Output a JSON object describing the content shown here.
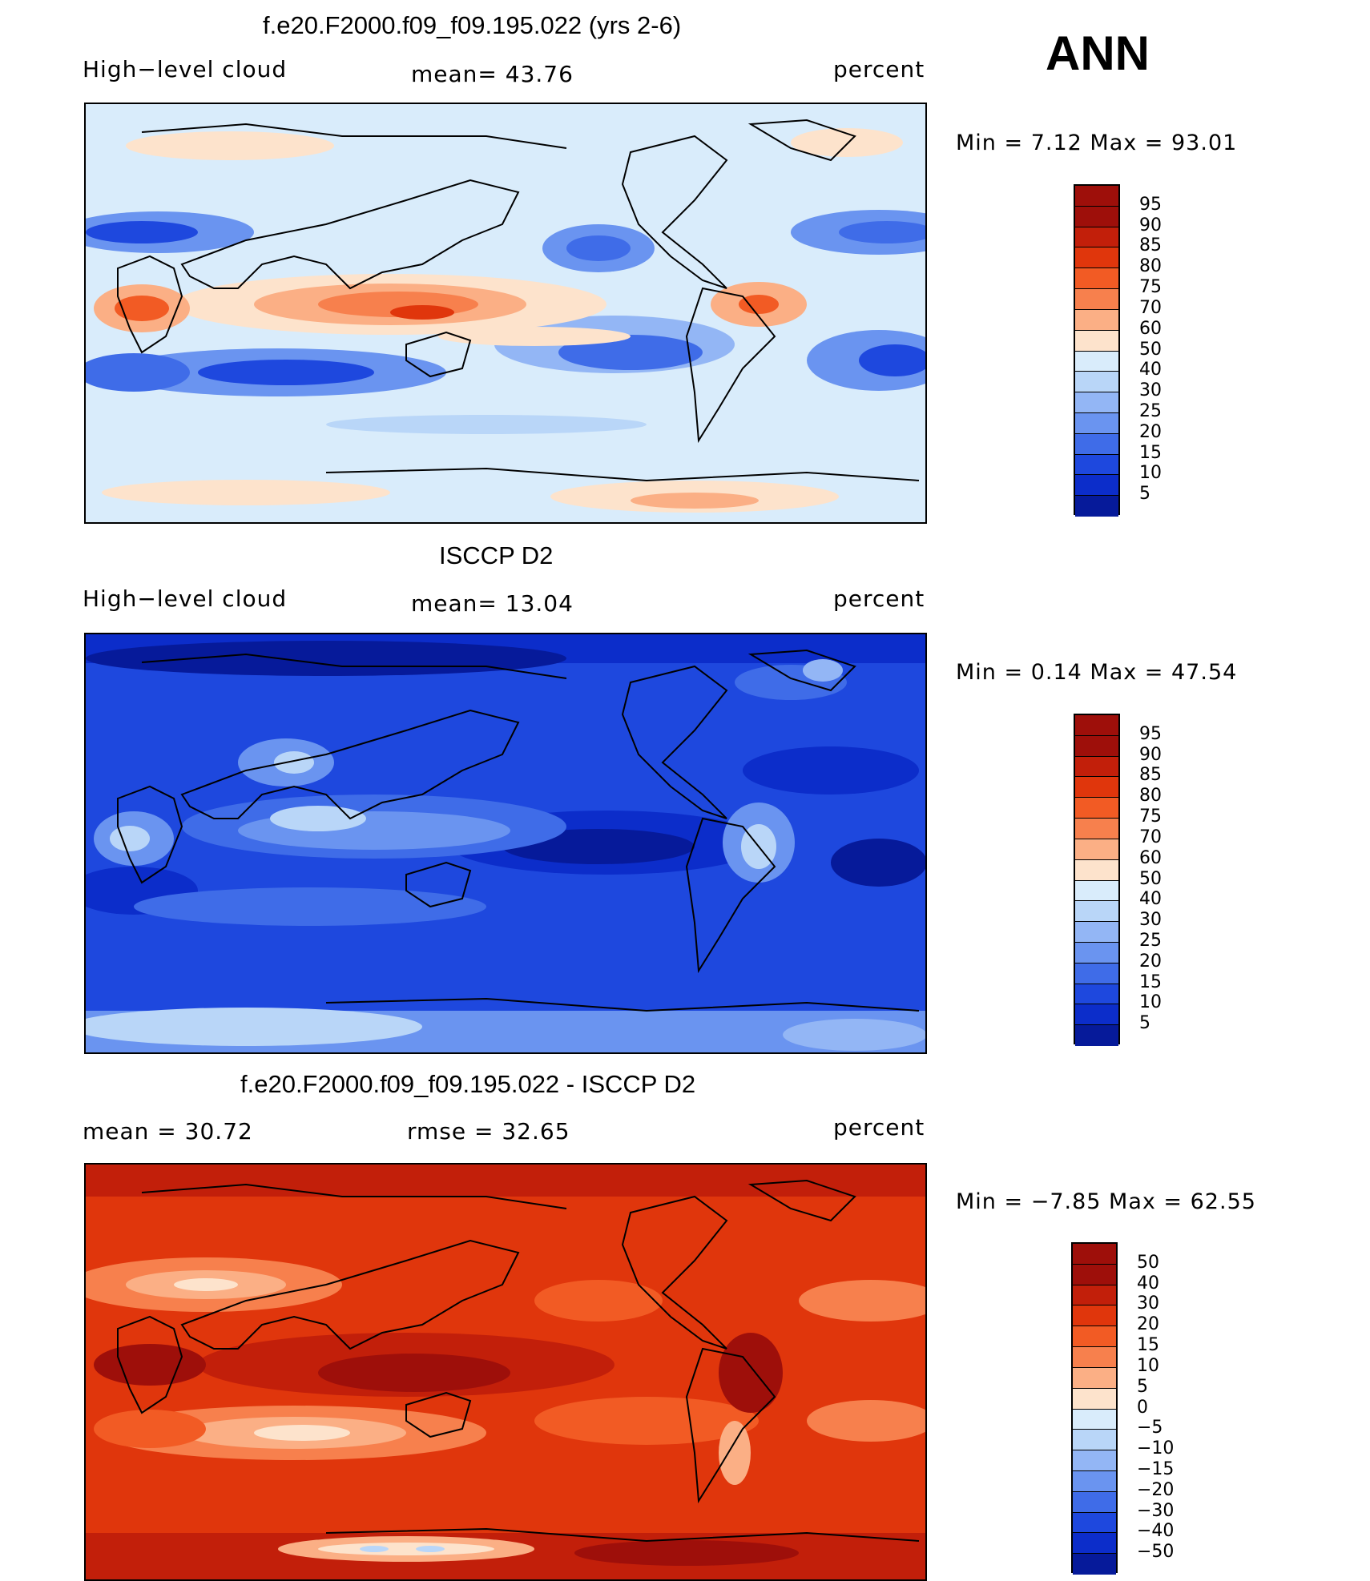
{
  "header": {
    "season": "ANN"
  },
  "panels": [
    {
      "title": "f.e20.F2000.f09_f09.195.022 (yrs 2-6)",
      "left_label": "High−level cloud",
      "center_label": "mean=   43.76",
      "right_label": "percent",
      "minmax": "Min  =     7.12  Max  =    93.01",
      "palette": [
        "#9e0f0a",
        "#c21f0a",
        "#e0360c",
        "#f25b24",
        "#f7804d",
        "#fbaf85",
        "#fde3cc",
        "#d9ecfb",
        "#b9d6f8",
        "#93b6f5",
        "#6a94f0",
        "#3f6ce8",
        "#1e48de",
        "#0c2dca",
        "#061a9a"
      ],
      "labels": [
        "95",
        "90",
        "85",
        "80",
        "75",
        "70",
        "60",
        "50",
        "40",
        "30",
        "25",
        "20",
        "15",
        "10",
        "5"
      ],
      "bg": "#d9ecfb"
    },
    {
      "title": "ISCCP D2",
      "left_label": "High−level cloud",
      "center_label": "mean=   13.04",
      "right_label": "percent",
      "minmax": "Min  =     0.14  Max  =    47.54",
      "palette": [
        "#9e0f0a",
        "#c21f0a",
        "#e0360c",
        "#f25b24",
        "#f7804d",
        "#fbaf85",
        "#fde3cc",
        "#d9ecfb",
        "#b9d6f8",
        "#93b6f5",
        "#6a94f0",
        "#3f6ce8",
        "#1e48de",
        "#0c2dca",
        "#061a9a"
      ],
      "labels": [
        "95",
        "90",
        "85",
        "80",
        "75",
        "70",
        "60",
        "50",
        "40",
        "30",
        "25",
        "20",
        "15",
        "10",
        "5"
      ],
      "bg": "#1e48de"
    },
    {
      "title": "f.e20.F2000.f09_f09.195.022 - ISCCP D2",
      "left_label": "mean  =    30.72",
      "center_label": "rmse  =    32.65",
      "right_label": "percent",
      "minmax": "Min  =   −7.85  Max  =    62.55",
      "palette": [
        "#9e0f0a",
        "#c21f0a",
        "#e0360c",
        "#f25b24",
        "#f7804d",
        "#fbaf85",
        "#fde3cc",
        "#d9ecfb",
        "#b9d6f8",
        "#93b6f5",
        "#6a94f0",
        "#3f6ce8",
        "#1e48de",
        "#0c2dca",
        "#061a9a"
      ],
      "labels": [
        "50",
        "40",
        "30",
        "20",
        "15",
        "10",
        "5",
        "0",
        "−5",
        "−10",
        "−15",
        "−20",
        "−30",
        "−40",
        "−50"
      ],
      "bg": "#e0360c"
    }
  ]
}
